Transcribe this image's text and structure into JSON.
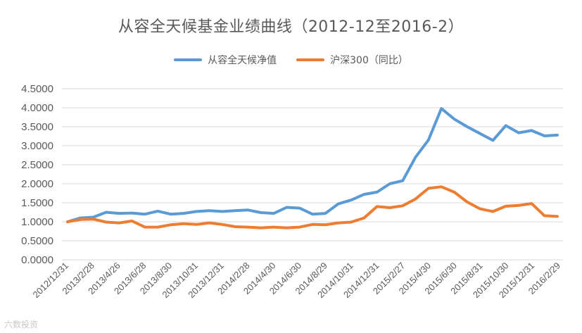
{
  "colors": {
    "nav": "#5B9BD5",
    "hs300": "#ED7D31",
    "grid": "#D9D9D9",
    "text": "#595959"
  },
  "watermark": "六数投资",
  "chart_data": {
    "type": "line",
    "title": "从容全天候基金业绩曲线（2012-12至2016-2）",
    "xlabel": "",
    "ylabel": "",
    "ylim": [
      0,
      4.5
    ],
    "yticks": [
      "0.0000",
      "0.5000",
      "1.0000",
      "1.5000",
      "2.0000",
      "2.5000",
      "3.0000",
      "3.5000",
      "4.0000",
      "4.5000"
    ],
    "grid": true,
    "legend_position": "top",
    "x_tick_labels": [
      "2012/12/31",
      "2013/2/28",
      "2013/4/26",
      "2013/6/28",
      "2013/8/30",
      "2013/10/31",
      "2013/12/31",
      "2014/2/28",
      "2014/4/30",
      "2014/6/30",
      "2014/8/29",
      "2014/10/31",
      "2014/12/31",
      "2015/2/27",
      "2015/4/30",
      "2015/6/30",
      "2015/8/31",
      "2015/10/30",
      "2015/12/31",
      "2016/2/29"
    ],
    "series": [
      {
        "name": "从容全天候净值",
        "color_key": "nav",
        "values": [
          1.0,
          1.1,
          1.12,
          1.25,
          1.22,
          1.23,
          1.2,
          1.28,
          1.2,
          1.22,
          1.27,
          1.29,
          1.27,
          1.29,
          1.31,
          1.24,
          1.22,
          1.38,
          1.36,
          1.2,
          1.22,
          1.47,
          1.57,
          1.72,
          1.78,
          2.0,
          2.08,
          2.7,
          3.15,
          3.98,
          3.7,
          3.5,
          3.32,
          3.14,
          3.53,
          3.34,
          3.4,
          3.26,
          3.28
        ]
      },
      {
        "name": "沪深300（同比）",
        "color_key": "hs300",
        "values": [
          1.0,
          1.06,
          1.07,
          0.99,
          0.97,
          1.02,
          0.86,
          0.86,
          0.92,
          0.95,
          0.93,
          0.97,
          0.93,
          0.87,
          0.86,
          0.84,
          0.86,
          0.84,
          0.86,
          0.93,
          0.92,
          0.97,
          0.99,
          1.1,
          1.4,
          1.37,
          1.42,
          1.6,
          1.88,
          1.92,
          1.78,
          1.52,
          1.34,
          1.27,
          1.41,
          1.43,
          1.48,
          1.16,
          1.14
        ]
      }
    ]
  }
}
